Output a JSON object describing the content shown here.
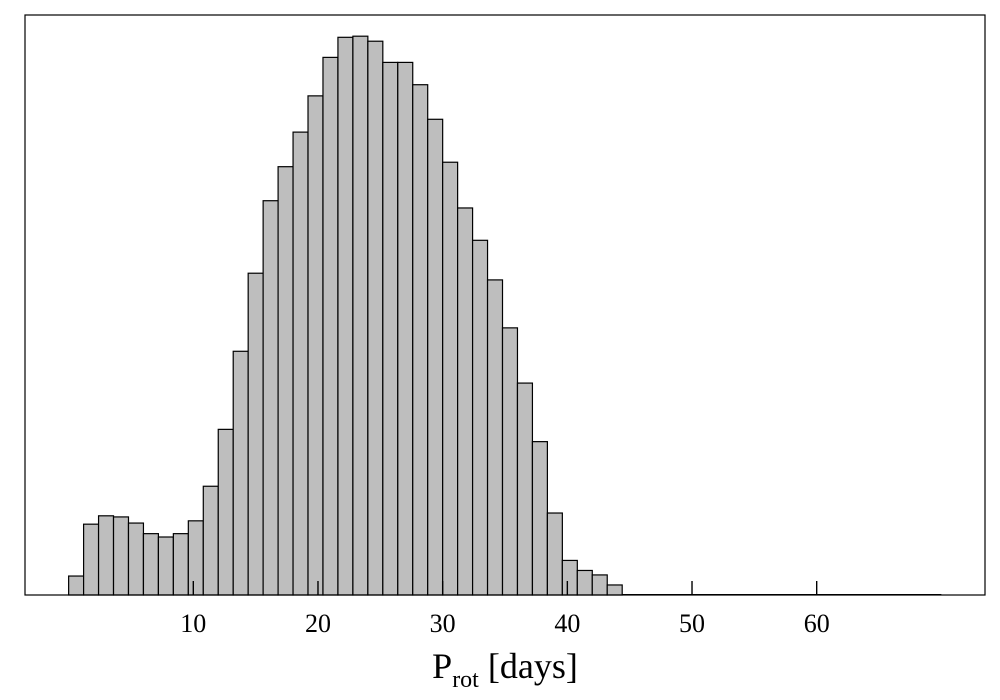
{
  "chart_data": {
    "type": "bar",
    "subtype": "histogram",
    "bin_width": 1.2,
    "bin_start": 0,
    "xlim": [
      -3.5,
      73.5
    ],
    "ylim": [
      0,
      1.04
    ],
    "x_ticks": [
      10,
      20,
      30,
      40,
      50,
      60
    ],
    "x_tick_labels": [
      "10",
      "20",
      "30",
      "40",
      "50",
      "60"
    ],
    "xlabel_main": "P",
    "xlabel_sub": "rot",
    "xlabel_suffix": " [days]",
    "ylabel": "",
    "y_ticks_visible": false,
    "grid": false,
    "bar_color": "#bebebe",
    "edge_color": "#000000",
    "values": [
      0.034,
      0.127,
      0.142,
      0.14,
      0.129,
      0.11,
      0.104,
      0.11,
      0.133,
      0.195,
      0.297,
      0.437,
      0.577,
      0.707,
      0.768,
      0.83,
      0.895,
      0.964,
      1.0,
      1.002,
      0.993,
      0.955,
      0.955,
      0.915,
      0.853,
      0.776,
      0.694,
      0.636,
      0.565,
      0.479,
      0.38,
      0.275,
      0.147,
      0.062,
      0.044,
      0.036,
      0.018
    ]
  }
}
